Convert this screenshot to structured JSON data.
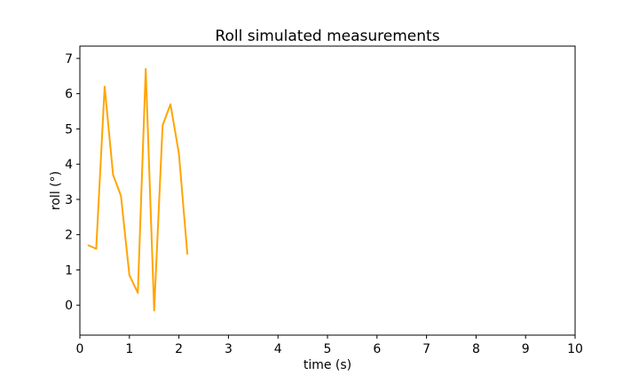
{
  "chart_data": {
    "type": "line",
    "title": "Roll simulated measurements",
    "xlabel": "time (s)",
    "ylabel": "roll (°)",
    "xlim": [
      0,
      10
    ],
    "ylim": [
      -0.85,
      7.35
    ],
    "xticks": [
      0,
      1,
      2,
      3,
      4,
      5,
      6,
      7,
      8,
      9,
      10
    ],
    "yticks": [
      0,
      1,
      2,
      3,
      4,
      5,
      6,
      7
    ],
    "grid": false,
    "series": [
      {
        "color": "#ffa500",
        "x": [
          0.17,
          0.33,
          0.5,
          0.67,
          0.83,
          1.0,
          1.17,
          1.33,
          1.5,
          1.67,
          1.83,
          2.0,
          2.17
        ],
        "y": [
          1.7,
          1.6,
          6.2,
          3.7,
          3.1,
          0.85,
          0.35,
          6.7,
          -0.15,
          5.1,
          5.7,
          4.3,
          1.45
        ]
      }
    ]
  }
}
